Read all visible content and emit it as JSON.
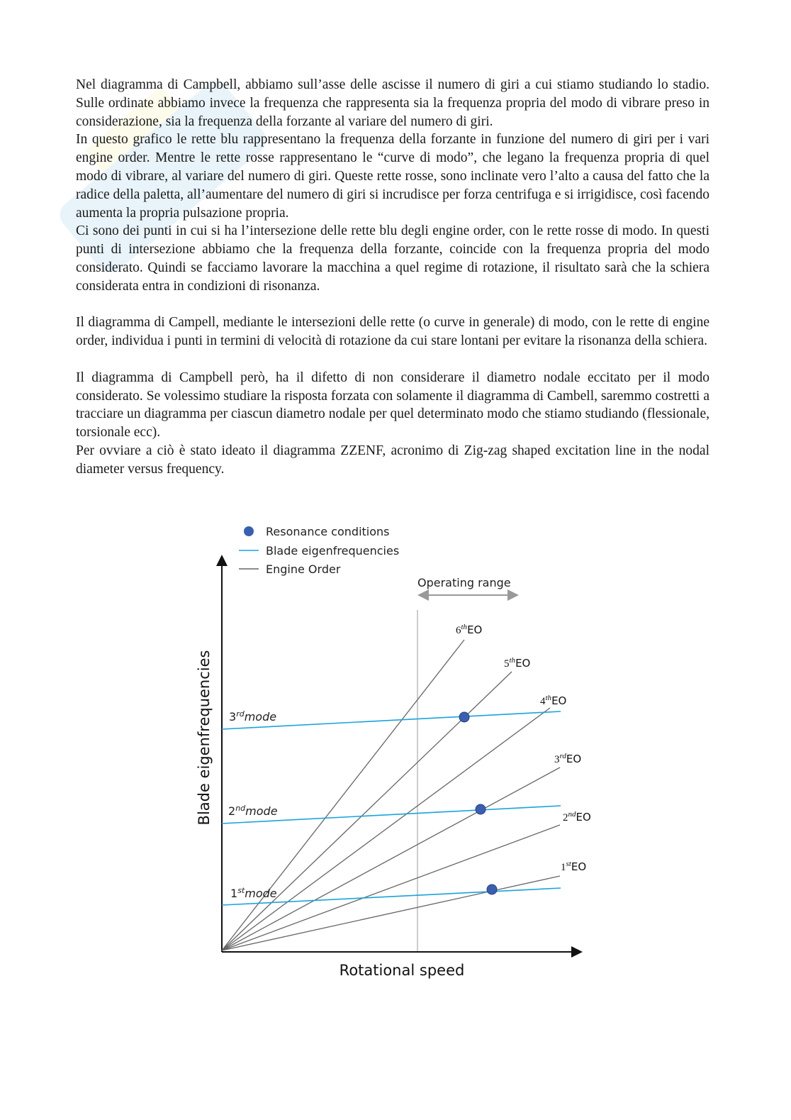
{
  "paragraphs": [
    "Nel diagramma di Campbell, abbiamo sull’asse delle ascisse il numero di giri a cui stiamo studiando lo stadio. Sulle ordinate abbiamo invece la frequenza che rappresenta sia la frequenza propria del modo di vibrare preso in considerazione, sia la frequenza della forzante al variare del numero di giri.",
    "In questo grafico le rette blu rappresentano la frequenza della forzante in  funzione del numero di giri per i vari engine order. Mentre le rette rosse rappresentano le “curve di modo”, che legano la frequenza propria di quel modo di vibrare, al variare del numero di giri. Queste rette rosse, sono inclinate vero l’alto a causa del fatto che la radice della paletta, all’aumentare del numero di giri si incrudisce per forza centrifuga e si irrigidisce, così facendo aumenta la propria pulsazione propria.",
    "Ci sono dei punti in cui si ha l’intersezione delle rette blu degli engine order, con le rette rosse di modo. In questi punti di intersezione abbiamo che la frequenza della forzante, coincide con la frequenza propria del modo considerato. Quindi se facciamo lavorare la macchina a quel regime di rotazione, il risultato sarà che la schiera considerata entra in condizioni di risonanza.",
    "Il diagramma di Campell, mediante le intersezioni delle rette (o curve in generale) di modo, con le rette di engine order, individua i punti in termini di velocità di rotazione da cui stare lontani per evitare la risonanza della schiera.",
    "Il diagramma di Campbell però, ha il difetto di non considerare il diametro nodale eccitato per il modo considerato. Se volessimo studiare la risposta forzata con solamente il diagramma di Cambell, saremmo costretti a tracciare un diagramma per ciascun diametro nodale per quel determinato modo che stiamo studiando (flessionale, torsionale ecc).",
    "Per ovviare a ciò è stato ideato il diagramma ZZENF, acronimo di Zig-zag shaped excitation line in the nodal diameter versus frequency."
  ],
  "figure": {
    "legend": {
      "resonance": "Resonance conditions",
      "eigen": "Blade eigenfrequencies",
      "eo": "Engine Order"
    },
    "operating_range": "Operating range",
    "y_label": "Blade eigenfrequencies",
    "x_label": "Rotational speed",
    "eo_labels": [
      {
        "num": "6",
        "sup": "th",
        "suffix": "EO"
      },
      {
        "num": "5",
        "sup": "th",
        "suffix": "EO"
      },
      {
        "num": "4",
        "sup": "th",
        "suffix": "EO"
      },
      {
        "num": "3",
        "sup": "rd",
        "suffix": "EO"
      },
      {
        "num": "2",
        "sup": "nd",
        "suffix": "EO"
      },
      {
        "num": "1",
        "sup": "st",
        "suffix": "EO"
      }
    ],
    "mode_labels": [
      {
        "num": "3",
        "sup": "rd",
        "suffix": "mode"
      },
      {
        "num": "2",
        "sup": "nd",
        "suffix": "mode"
      },
      {
        "num": "1",
        "sup": "st",
        "suffix": "mode"
      }
    ],
    "colors": {
      "eigen": "#1aa3dc",
      "eo": "#666666",
      "resonance": "#3a5fb0",
      "operating": "#999999"
    }
  }
}
